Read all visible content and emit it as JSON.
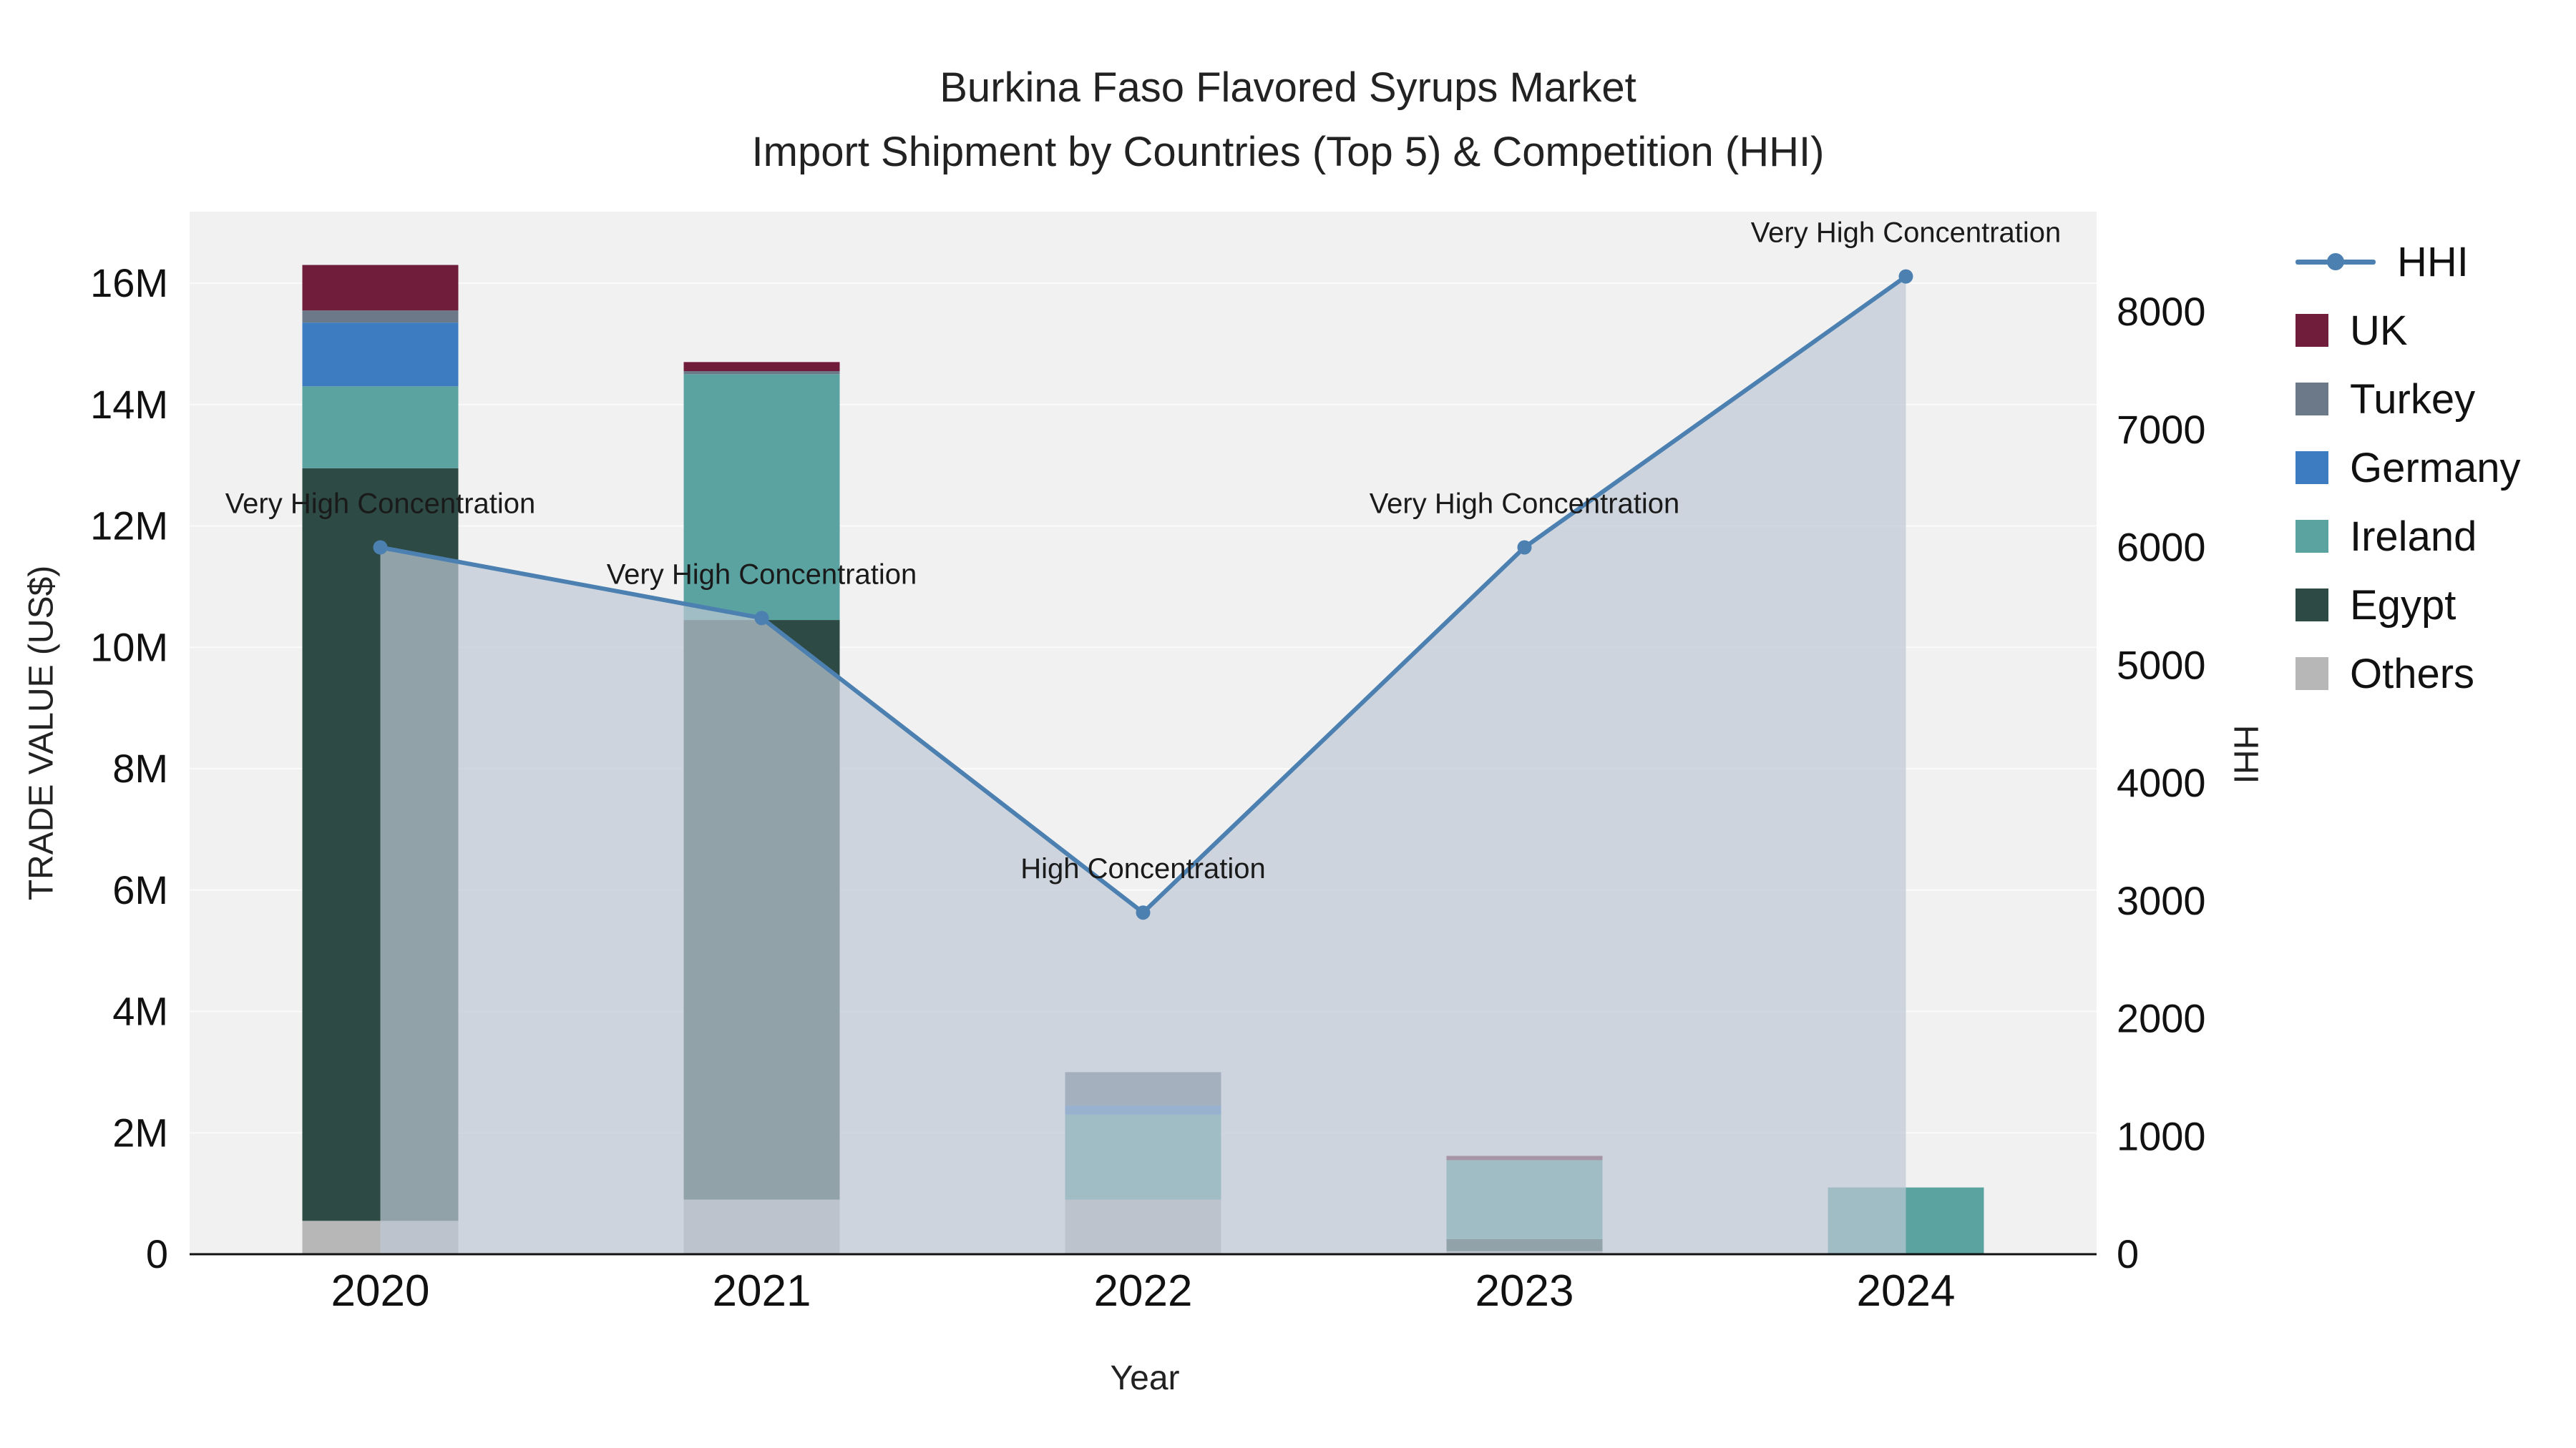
{
  "chart_data": {
    "type": "combo-stacked-bar-line",
    "title": "Burkina Faso Flavored Syrups Market",
    "subtitle": "Import Shipment by Countries (Top 5) & Competition (HHI)",
    "xlabel": "Year",
    "ylabel_left": "TRADE VALUE (US$)",
    "ylabel_right": "HHI",
    "categories": [
      "2020",
      "2021",
      "2022",
      "2023",
      "2024"
    ],
    "bar_series": [
      {
        "name": "Others",
        "color": "#b7b7b7",
        "values": [
          550000,
          900000,
          900000,
          50000,
          0
        ]
      },
      {
        "name": "Egypt",
        "color": "#2d4b44",
        "values": [
          12400000,
          9550000,
          0,
          200000,
          0
        ]
      },
      {
        "name": "Ireland",
        "color": "#5aa3a1",
        "values": [
          1350000,
          4050000,
          1400000,
          1300000,
          1100000
        ]
      },
      {
        "name": "Germany",
        "color": "#3e7cc1",
        "values": [
          1050000,
          0,
          150000,
          0,
          0
        ]
      },
      {
        "name": "Turkey",
        "color": "#6b7989",
        "values": [
          200000,
          50000,
          550000,
          0,
          0
        ]
      },
      {
        "name": "UK",
        "color": "#701d3c",
        "values": [
          750000,
          150000,
          0,
          70000,
          0
        ]
      }
    ],
    "line_series": {
      "name": "HHI",
      "color": "#4c80b1",
      "fill": "rgba(190,199,212,0.7)",
      "values": [
        6000,
        5400,
        2900,
        6000,
        8300
      ]
    },
    "annotations": [
      "Very High Concentration",
      "Very High Concentration",
      "High Concentration",
      "Very High Concentration",
      "Very High Concentration"
    ],
    "y_left_ticks": [
      "0",
      "2M",
      "4M",
      "6M",
      "8M",
      "10M",
      "12M",
      "14M",
      "16M"
    ],
    "y_right_ticks": [
      "0",
      "1000",
      "2000",
      "3000",
      "4000",
      "5000",
      "6000",
      "7000",
      "8000"
    ],
    "ylim_left": [
      0,
      16000000
    ],
    "ylim_right": [
      0,
      8000
    ],
    "grid": true,
    "legend_position": "right",
    "legend_order": [
      "HHI",
      "UK",
      "Turkey",
      "Germany",
      "Ireland",
      "Egypt",
      "Others"
    ]
  }
}
